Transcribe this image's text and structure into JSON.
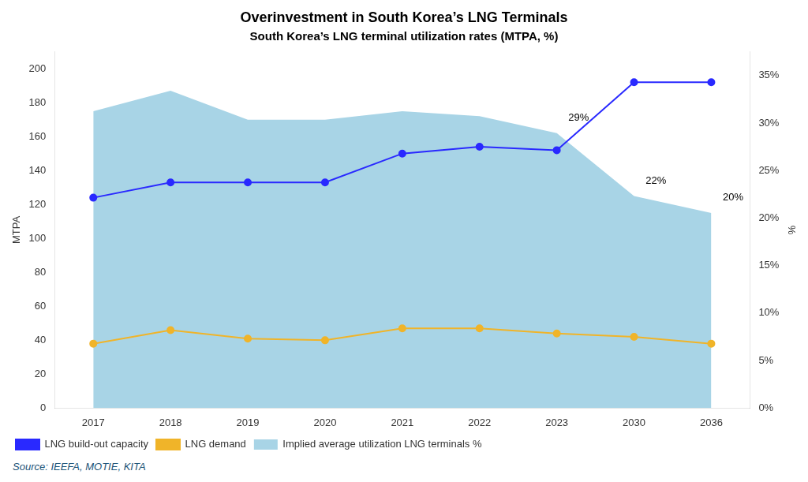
{
  "chart_data": {
    "type": "line",
    "title": "Overinvestment in South Korea’s LNG Terminals",
    "subtitle": "South Korea’s LNG terminal utilization rates (MTPA, %)",
    "categories": [
      "2017",
      "2018",
      "2019",
      "2020",
      "2021",
      "2022",
      "2023",
      "2030",
      "2036"
    ],
    "series": [
      {
        "name": "Implied average utilization LNG terminals %",
        "type": "area",
        "color": "#a8d4e6",
        "values": [
          175,
          187,
          170,
          170,
          175,
          172,
          162,
          125,
          115
        ]
      },
      {
        "name": "LNG demand",
        "type": "line",
        "color": "#f0b429",
        "marker": "o",
        "values": [
          38,
          46,
          41,
          40,
          47,
          47,
          44,
          42,
          38
        ]
      },
      {
        "name": "LNG build-out capacity",
        "type": "line",
        "color": "#2929ff",
        "marker": "o",
        "values": [
          124,
          133,
          133,
          133,
          150,
          154,
          152,
          192,
          192
        ]
      }
    ],
    "ylabel": "MTPA",
    "y2label": "%",
    "ylim": [
      0,
      210
    ],
    "yticks": [
      0,
      20,
      40,
      60,
      80,
      100,
      120,
      140,
      160,
      180,
      200
    ],
    "y2lim": [
      0,
      0.375
    ],
    "y2ticks": [
      {
        "value": 0,
        "label": "0%"
      },
      {
        "value": 0.05,
        "label": "5%"
      },
      {
        "value": 0.1,
        "label": "10%"
      },
      {
        "value": 0.15,
        "label": "15%"
      },
      {
        "value": 0.2,
        "label": "20%"
      },
      {
        "value": 0.25,
        "label": "25%"
      },
      {
        "value": 0.3,
        "label": "30%"
      },
      {
        "value": 0.35,
        "label": "35%"
      }
    ],
    "annotations": [
      {
        "text": "29%",
        "x": "2023",
        "y": 168
      },
      {
        "text": "22%",
        "x": "2030",
        "y": 131
      },
      {
        "text": "20%",
        "x": "2036",
        "y": 121
      }
    ],
    "source": "Source: IEEFA, MOTIE, KITA",
    "legend": "bottom",
    "grid": false
  }
}
